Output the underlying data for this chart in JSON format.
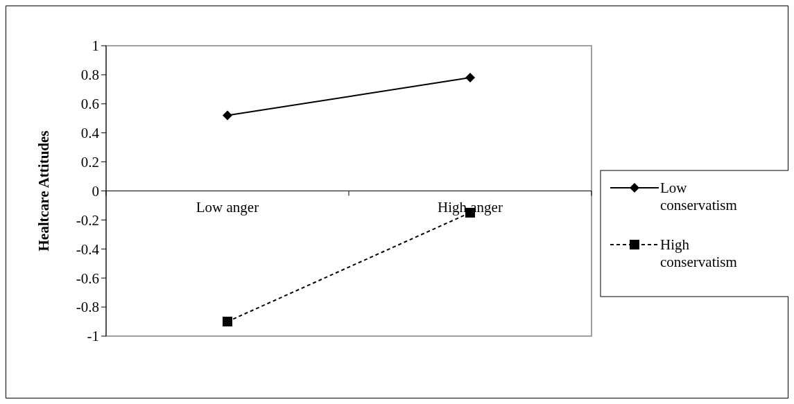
{
  "chart_data": {
    "type": "line",
    "ylabel": "Healtcare Attitudes",
    "categories": [
      "Low anger",
      "High anger"
    ],
    "ylim": [
      -1,
      1
    ],
    "yticks": [
      -1,
      -0.8,
      -0.6,
      -0.4,
      -0.2,
      0,
      0.2,
      0.4,
      0.6,
      0.8,
      1
    ],
    "grid": false,
    "legend": "right",
    "series": [
      {
        "name": "Low conservatism",
        "color": "#000000",
        "values": [
          0.52,
          0.78
        ],
        "marker": "diamond",
        "line_style": "solid"
      },
      {
        "name": "High conservatism",
        "color": "#000000",
        "values": [
          -0.9,
          -0.15
        ],
        "marker": "square",
        "line_style": "dashed"
      }
    ]
  }
}
